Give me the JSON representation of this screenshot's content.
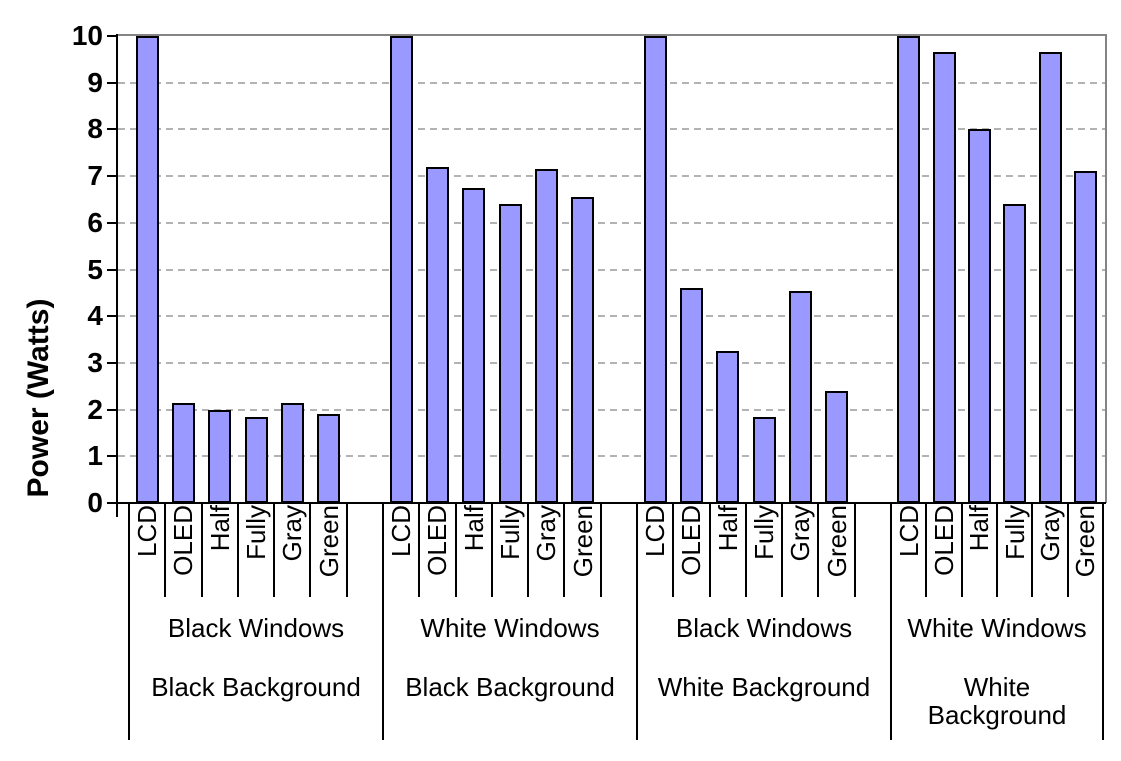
{
  "chart_data": {
    "type": "bar",
    "title": "",
    "ylabel": "Power (Watts)",
    "xlabel": "",
    "ylim": [
      0,
      10
    ],
    "yticks": [
      0,
      1,
      2,
      3,
      4,
      5,
      6,
      7,
      8,
      9,
      10
    ],
    "grid": "horizontal dashed gridlines at each integer; solid gray border on top and right of plot area",
    "legend": "none",
    "bar_labels": [
      "LCD",
      "OLED",
      "Half",
      "Fully",
      "Gray",
      "Green"
    ],
    "groups": [
      {
        "windows_label": "Black Windows",
        "background_label": "Black Background",
        "values": [
          10,
          2.15,
          2.0,
          1.85,
          2.15,
          1.9
        ]
      },
      {
        "windows_label": "White Windows",
        "background_label": "Black Background",
        "values": [
          10,
          7.2,
          6.75,
          6.4,
          7.15,
          6.55
        ]
      },
      {
        "windows_label": "Black Windows",
        "background_label": "White Background",
        "values": [
          10,
          4.6,
          3.25,
          1.85,
          4.55,
          2.4
        ]
      },
      {
        "windows_label": "White Windows",
        "background_label": "White Background",
        "values": [
          10,
          9.65,
          8.0,
          6.4,
          9.65,
          7.1
        ]
      }
    ],
    "colors": {
      "bar_fill": "#9999FF",
      "bar_border": "#000000",
      "gridline": "#b3b3b3",
      "plot_border": "#848484",
      "axis": "#000000",
      "text": "#000000",
      "background": "#FFFFFF"
    }
  }
}
